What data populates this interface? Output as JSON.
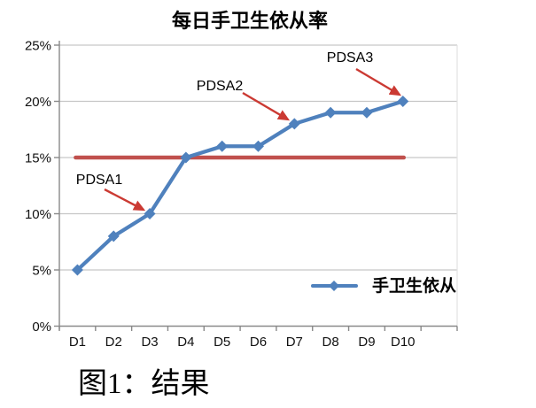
{
  "page": {
    "background": "#FFFFFF"
  },
  "caption": "图1：结果",
  "chart_data": {
    "type": "line",
    "title": "每日手卫生依从率",
    "categories": [
      "D1",
      "D2",
      "D3",
      "D4",
      "D5",
      "D6",
      "D7",
      "D8",
      "D9",
      "D10"
    ],
    "series": [
      {
        "name": "手卫生依从",
        "values": [
          5,
          8,
          10,
          15,
          16,
          16,
          18,
          19,
          19,
          20
        ],
        "color": "#4F81BD",
        "marker": "diamond"
      }
    ],
    "target_line": {
      "value": 15,
      "color": "#C0504D"
    },
    "ylim": [
      0,
      25
    ],
    "y_tick_values": [
      0,
      5,
      10,
      15,
      20,
      25
    ],
    "y_tick_labels": [
      "0%",
      "5%",
      "10%",
      "15%",
      "20%",
      "25%"
    ],
    "grid": true,
    "axis_color": "#898989",
    "grid_color": "#C6C6C6",
    "plot_border_color": "#E3E3E3",
    "legend": {
      "label": "手卫生依从",
      "position": "inside-bottom-right"
    },
    "annotations": [
      {
        "text": "PDSA1",
        "label_x": 112,
        "label_y": 208,
        "arrow": [
          118,
          214,
          162,
          237
        ],
        "color": "#CB3A33"
      },
      {
        "text": "PDSA2",
        "label_x": 248,
        "label_y": 102,
        "arrow": [
          274,
          105,
          325,
          135
        ],
        "color": "#CB3A33"
      },
      {
        "text": "PDSA3",
        "label_x": 395,
        "label_y": 70,
        "arrow": [
          402,
          78,
          451,
          107
        ],
        "color": "#CB3A33"
      }
    ]
  }
}
